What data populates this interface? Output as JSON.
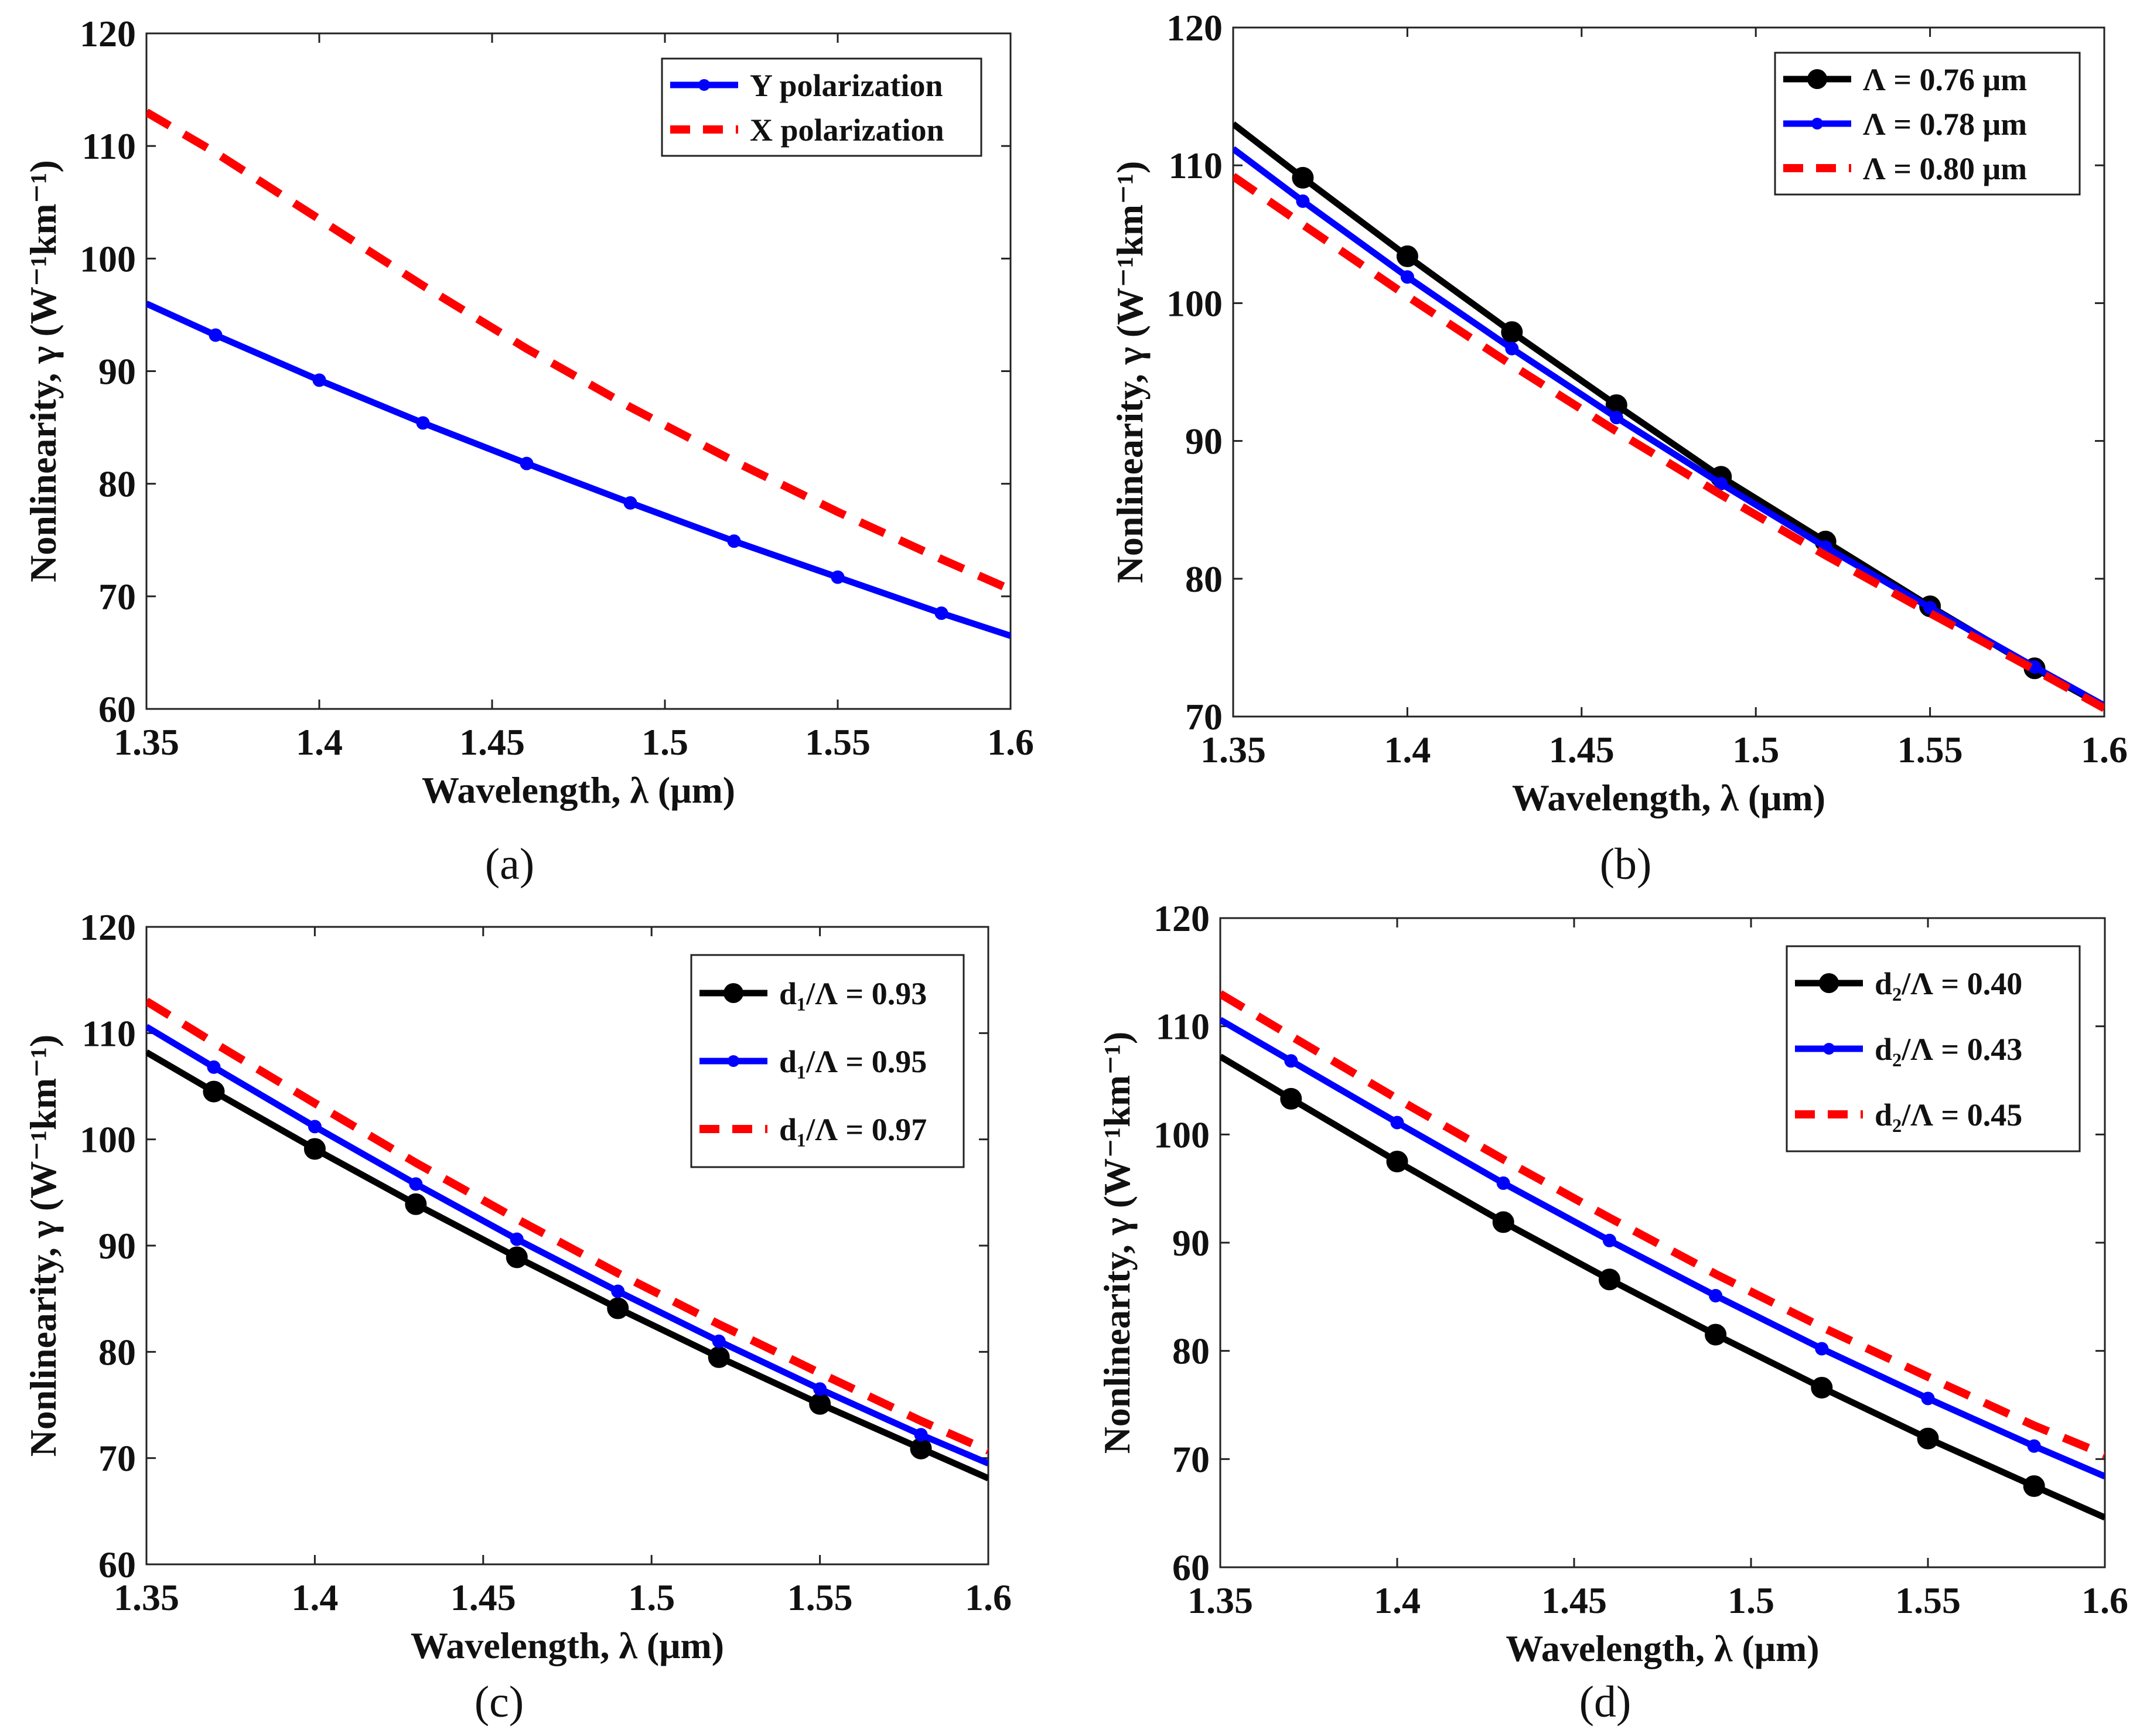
{
  "chart_data": [
    {
      "type": "line",
      "panel_label": "(a)",
      "xlabel": "Wavelength, λ (μm)",
      "ylabel": "Nonlinearity, γ (W⁻¹km⁻¹)",
      "xlim": [
        1.35,
        1.6
      ],
      "ylim": [
        60,
        120
      ],
      "xticks": [
        "1.35",
        "1.4",
        "1.45",
        "1.5",
        "1.55",
        "1.6"
      ],
      "yticks": [
        "60",
        "70",
        "80",
        "90",
        "100",
        "110",
        "120"
      ],
      "legend_position": "top-right",
      "x": [
        1.35,
        1.37,
        1.4,
        1.43,
        1.46,
        1.49,
        1.52,
        1.55,
        1.58,
        1.6
      ],
      "series": [
        {
          "name": "Y polarization",
          "color": "#0000ff",
          "style": "solid",
          "marker": "small-dot",
          "values": [
            96.0,
            93.2,
            89.2,
            85.4,
            81.8,
            78.3,
            74.9,
            71.7,
            68.5,
            66.5
          ]
        },
        {
          "name": "X polarization",
          "color": "#ff0000",
          "style": "dashed",
          "marker": "none",
          "values": [
            113.0,
            109.4,
            103.5,
            97.6,
            92.0,
            86.8,
            82.0,
            77.5,
            73.3,
            70.6
          ]
        }
      ]
    },
    {
      "type": "line",
      "panel_label": "(b)",
      "xlabel": "Wavelength, λ (μm)",
      "ylabel": "Nonlinearity, γ (W⁻¹km⁻¹)",
      "xlim": [
        1.35,
        1.6
      ],
      "ylim": [
        70,
        120
      ],
      "xticks": [
        "1.35",
        "1.4",
        "1.45",
        "1.5",
        "1.55",
        "1.6"
      ],
      "yticks": [
        "70",
        "80",
        "90",
        "100",
        "110",
        "120"
      ],
      "legend_position": "top-right",
      "x": [
        1.35,
        1.37,
        1.4,
        1.43,
        1.46,
        1.49,
        1.52,
        1.55,
        1.58,
        1.6
      ],
      "series": [
        {
          "name": "Λ = 0.76 μm",
          "color": "#000000",
          "style": "solid",
          "marker": "big-dot",
          "values": [
            113.0,
            109.1,
            103.4,
            97.9,
            92.6,
            87.4,
            82.7,
            78.0,
            73.5,
            70.7
          ]
        },
        {
          "name": "Λ = 0.78 μm",
          "color": "#0000ff",
          "style": "solid",
          "marker": "small-dot",
          "values": [
            111.2,
            107.4,
            101.9,
            96.7,
            91.7,
            86.9,
            82.3,
            77.9,
            73.6,
            70.8
          ]
        },
        {
          "name": "Λ = 0.80 μm",
          "color": "#ff0000",
          "style": "dashed",
          "marker": "none",
          "values": [
            109.2,
            105.7,
            100.5,
            95.5,
            90.7,
            86.1,
            81.7,
            77.5,
            73.4,
            70.6
          ]
        }
      ]
    },
    {
      "type": "line",
      "panel_label": "(c)",
      "xlabel": "Wavelength, λ (μm)",
      "ylabel": "Nonlinearity, γ (W⁻¹km⁻¹)",
      "xlim": [
        1.35,
        1.6
      ],
      "ylim": [
        60,
        120
      ],
      "xticks": [
        "1.35",
        "1.4",
        "1.45",
        "1.5",
        "1.55",
        "1.6"
      ],
      "yticks": [
        "60",
        "70",
        "80",
        "90",
        "100",
        "110",
        "120"
      ],
      "legend_position": "top-right",
      "x": [
        1.35,
        1.37,
        1.4,
        1.43,
        1.46,
        1.49,
        1.52,
        1.55,
        1.58,
        1.6
      ],
      "series": [
        {
          "name": "d₁/Λ = 0.93",
          "color": "#000000",
          "style": "solid",
          "marker": "big-dot",
          "values": [
            108.2,
            104.5,
            99.1,
            93.9,
            88.9,
            84.1,
            79.5,
            75.1,
            70.9,
            68.1
          ]
        },
        {
          "name": "d₁/Λ = 0.95",
          "color": "#0000ff",
          "style": "solid",
          "marker": "small-dot",
          "values": [
            110.6,
            106.8,
            101.2,
            95.8,
            90.6,
            85.7,
            81.0,
            76.5,
            72.2,
            69.5
          ]
        },
        {
          "name": "d₁/Λ = 0.97",
          "color": "#ff0000",
          "style": "dashed",
          "marker": "none",
          "values": [
            113.0,
            109.1,
            103.4,
            97.8,
            92.5,
            87.4,
            82.6,
            78.0,
            73.5,
            70.7
          ]
        }
      ]
    },
    {
      "type": "line",
      "panel_label": "(d)",
      "xlabel": "Wavelength, λ (μm)",
      "ylabel": "Nonlinearity, γ (W⁻¹km⁻¹)",
      "xlim": [
        1.35,
        1.6
      ],
      "ylim": [
        60,
        120
      ],
      "xticks": [
        "1.35",
        "1.4",
        "1.45",
        "1.5",
        "1.55",
        "1.6"
      ],
      "yticks": [
        "60",
        "70",
        "80",
        "90",
        "100",
        "110",
        "120"
      ],
      "legend_position": "top-right",
      "x": [
        1.35,
        1.37,
        1.4,
        1.43,
        1.46,
        1.49,
        1.52,
        1.55,
        1.58,
        1.6
      ],
      "series": [
        {
          "name": "d₂/Λ = 0.40",
          "color": "#000000",
          "style": "solid",
          "marker": "big-dot",
          "values": [
            107.2,
            103.3,
            97.5,
            91.9,
            86.6,
            81.5,
            76.6,
            71.9,
            67.5,
            64.6
          ]
        },
        {
          "name": "d₂/Λ = 0.43",
          "color": "#0000ff",
          "style": "solid",
          "marker": "small-dot",
          "values": [
            110.6,
            106.8,
            101.1,
            95.5,
            90.2,
            85.1,
            80.2,
            75.6,
            71.2,
            68.4
          ]
        },
        {
          "name": "d₂/Λ = 0.45",
          "color": "#ff0000",
          "style": "dashed",
          "marker": "none",
          "values": [
            113.0,
            109.1,
            103.3,
            97.7,
            92.3,
            87.1,
            82.2,
            77.6,
            73.1,
            70.4
          ]
        }
      ]
    }
  ]
}
